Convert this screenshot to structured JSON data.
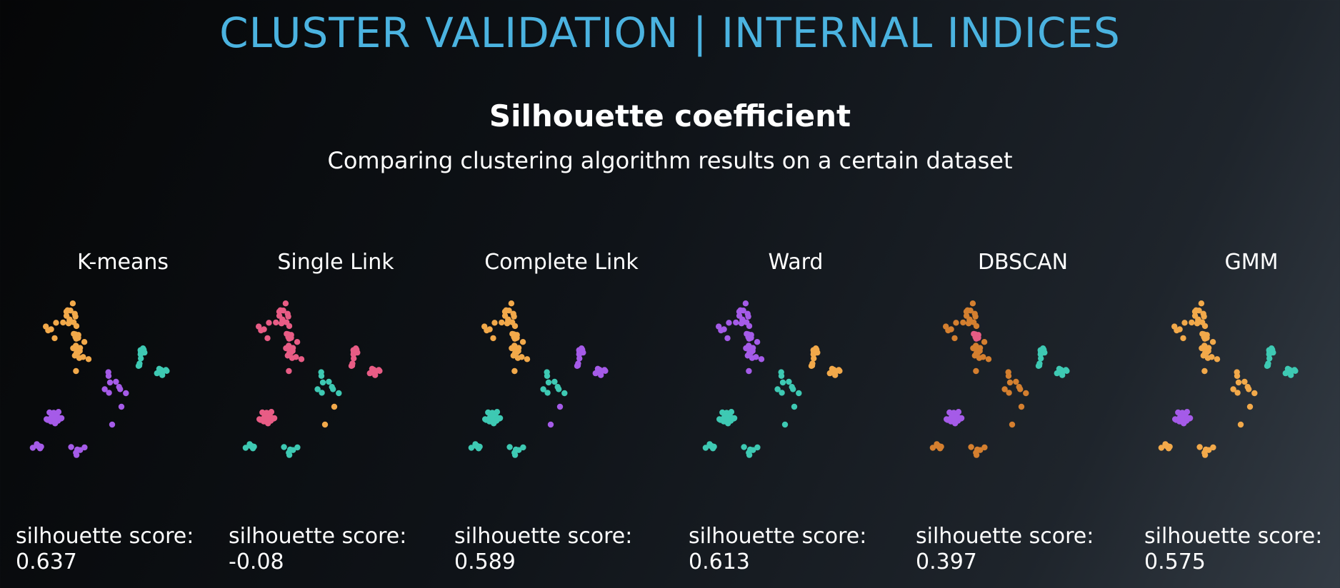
{
  "header": {
    "title": "CLUSTER VALIDATION | INTERNAL INDICES"
  },
  "subtitle": "Silhouette coefficient",
  "caption": "Comparing clustering algorithm results on a certain dataset",
  "score_label": "silhouette score:",
  "colors": {
    "orange": "#f2a94a",
    "teal": "#3ec9b3",
    "purple": "#a55be8",
    "pink": "#e85c85",
    "brown": "#d47f2f",
    "title": "#4bb3e0"
  },
  "chart_data": [
    {
      "type": "scatter",
      "title": "K-means",
      "score": "0.637",
      "assignments": [
        "orange",
        "teal",
        "purple",
        "purple"
      ],
      "noise": "purple"
    },
    {
      "type": "scatter",
      "title": "Single Link",
      "score": "-0.08",
      "assignments": [
        "pink",
        "pink",
        "pink",
        "teal"
      ],
      "noise": "orange"
    },
    {
      "type": "scatter",
      "title": "Complete Link",
      "score": "0.589",
      "assignments": [
        "orange",
        "purple",
        "teal",
        "teal"
      ],
      "noise": "purple"
    },
    {
      "type": "scatter",
      "title": "Ward",
      "score": "0.613",
      "assignments": [
        "purple",
        "orange",
        "teal",
        "teal"
      ],
      "noise": "teal"
    },
    {
      "type": "scatter",
      "title": "DBSCAN",
      "score": "0.397",
      "assignments": [
        "brown",
        "teal",
        "purple",
        "brown"
      ],
      "noise": "brown",
      "core": "pink"
    },
    {
      "type": "scatter",
      "title": "GMM",
      "score": "0.575",
      "assignments": [
        "orange",
        "teal",
        "purple",
        "orange"
      ],
      "noise": "orange"
    }
  ]
}
